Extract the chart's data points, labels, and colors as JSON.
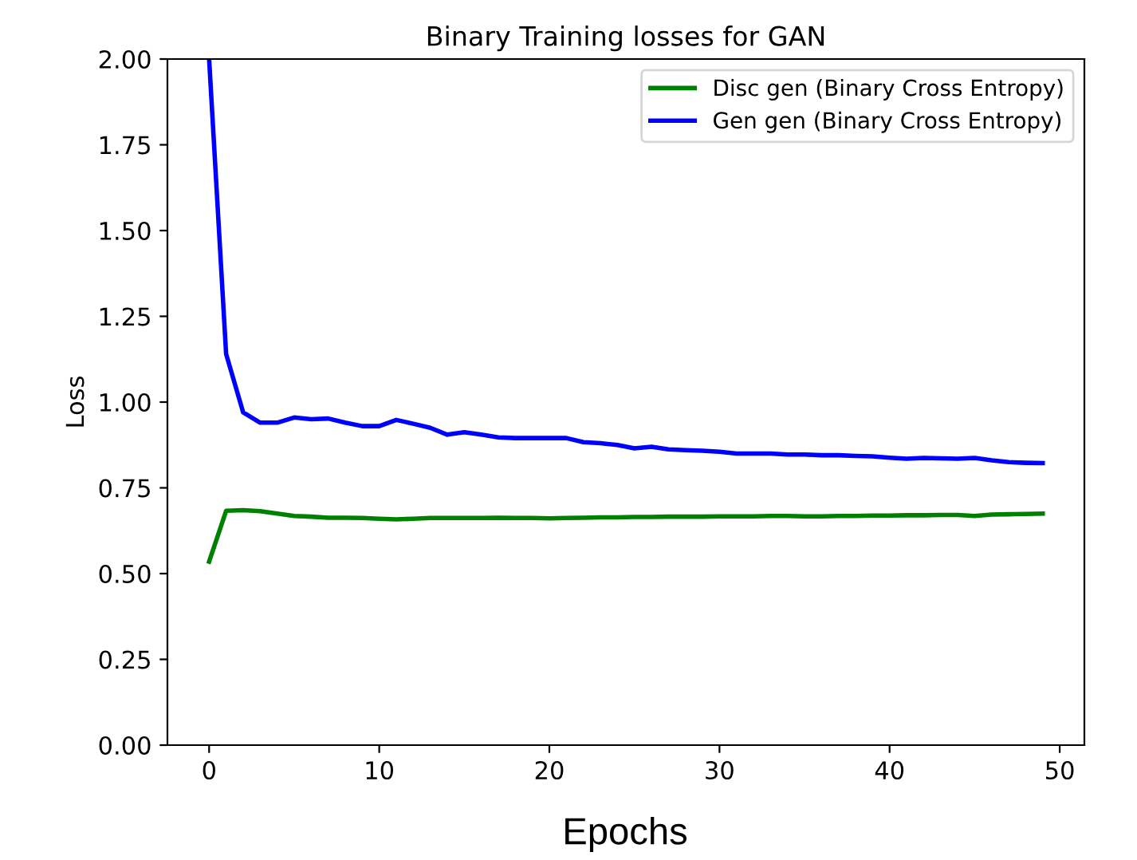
{
  "chart_data": {
    "type": "line",
    "title": "Binary Training losses for GAN",
    "xlabel": "Epochs",
    "ylabel": "Loss",
    "x": [
      0,
      1,
      2,
      3,
      4,
      5,
      6,
      7,
      8,
      9,
      10,
      11,
      12,
      13,
      14,
      15,
      16,
      17,
      18,
      19,
      20,
      21,
      22,
      23,
      24,
      25,
      26,
      27,
      28,
      29,
      30,
      31,
      32,
      33,
      34,
      35,
      36,
      37,
      38,
      39,
      40,
      41,
      42,
      43,
      44,
      45,
      46,
      47,
      48,
      49
    ],
    "series": [
      {
        "name": "Disc gen (Binary Cross Entropy)",
        "color": "#008000",
        "values": [
          0.535,
          0.683,
          0.685,
          0.682,
          0.675,
          0.668,
          0.666,
          0.663,
          0.663,
          0.662,
          0.66,
          0.658,
          0.66,
          0.662,
          0.662,
          0.662,
          0.662,
          0.663,
          0.662,
          0.662,
          0.661,
          0.662,
          0.663,
          0.664,
          0.664,
          0.665,
          0.665,
          0.666,
          0.666,
          0.666,
          0.667,
          0.667,
          0.667,
          0.668,
          0.668,
          0.667,
          0.667,
          0.668,
          0.668,
          0.669,
          0.669,
          0.67,
          0.67,
          0.671,
          0.671,
          0.668,
          0.672,
          0.673,
          0.674,
          0.675
        ]
      },
      {
        "name": "Gen gen (Binary Cross Entropy)",
        "color": "#0000ff",
        "values": [
          2.0,
          1.14,
          0.97,
          0.94,
          0.94,
          0.955,
          0.95,
          0.952,
          0.94,
          0.93,
          0.93,
          0.948,
          0.937,
          0.925,
          0.905,
          0.912,
          0.905,
          0.897,
          0.895,
          0.895,
          0.895,
          0.895,
          0.883,
          0.88,
          0.875,
          0.865,
          0.87,
          0.862,
          0.86,
          0.858,
          0.855,
          0.85,
          0.85,
          0.85,
          0.847,
          0.847,
          0.845,
          0.845,
          0.843,
          0.842,
          0.838,
          0.835,
          0.837,
          0.836,
          0.835,
          0.837,
          0.83,
          0.825,
          0.823,
          0.822
        ]
      }
    ],
    "xlim": [
      -2.45,
      51.45
    ],
    "ylim": [
      0,
      2
    ],
    "xticks": [
      0,
      10,
      20,
      30,
      40,
      50
    ],
    "yticks": [
      {
        "value": 0,
        "label": "0.00"
      },
      {
        "value": 0.25,
        "label": "0.25"
      },
      {
        "value": 0.5,
        "label": "0.50"
      },
      {
        "value": 0.75,
        "label": "0.75"
      },
      {
        "value": 1,
        "label": "1.00"
      },
      {
        "value": 1.25,
        "label": "1.25"
      },
      {
        "value": 1.5,
        "label": "1.50"
      },
      {
        "value": 1.75,
        "label": "1.75"
      },
      {
        "value": 2,
        "label": "2.00"
      }
    ],
    "legend": "top right",
    "grid": false
  }
}
